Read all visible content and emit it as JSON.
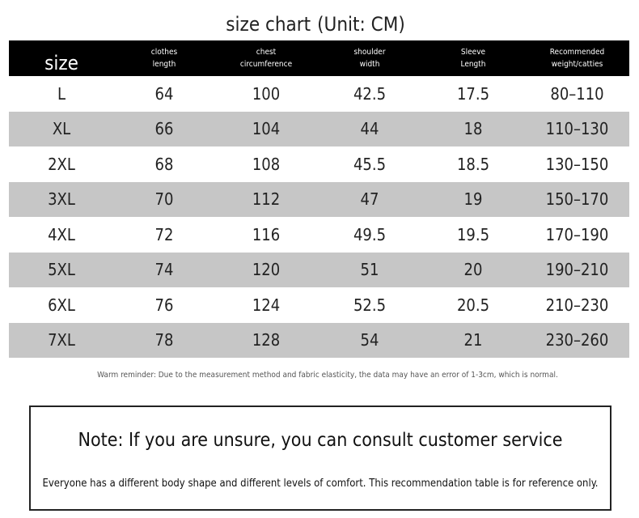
{
  "header": {
    "title": "size chart",
    "unit": "(Unit: CM)"
  },
  "table": {
    "columns": [
      "size",
      [
        "clothes",
        "length"
      ],
      [
        "chest",
        "circumference"
      ],
      [
        "shoulder",
        "width"
      ],
      [
        "Sleeve",
        "Length"
      ],
      [
        "Recommended",
        "weight/catties"
      ]
    ],
    "rows": [
      [
        "L",
        "64",
        "100",
        "42.5",
        "17.5",
        "80–110"
      ],
      [
        "XL",
        "66",
        "104",
        "44",
        "18",
        "110–130"
      ],
      [
        "2XL",
        "68",
        "108",
        "45.5",
        "18.5",
        "130–150"
      ],
      [
        "3XL",
        "70",
        "112",
        "47",
        "19",
        "150–170"
      ],
      [
        "4XL",
        "72",
        "116",
        "49.5",
        "19.5",
        "170–190"
      ],
      [
        "5XL",
        "74",
        "120",
        "51",
        "20",
        "190–210"
      ],
      [
        "6XL",
        "76",
        "124",
        "52.5",
        "20.5",
        "210–230"
      ],
      [
        "7XL",
        "78",
        "128",
        "54",
        "21",
        "230–260"
      ]
    ]
  },
  "reminder": "Warm reminder: Due to the measurement method and fabric elasticity, the data may have an error of 1-3cm, which is normal.",
  "note": {
    "title": "Note: If you are unsure, you can consult customer service",
    "text": "Everyone has a different body shape and different levels of comfort. This recommendation table is for reference only."
  }
}
